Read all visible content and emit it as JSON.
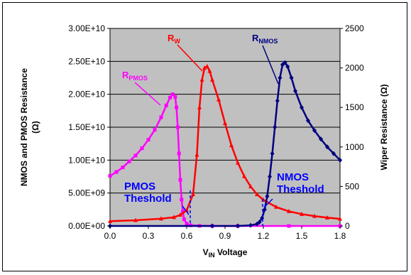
{
  "chart_data": {
    "type": "line",
    "xlabel_main": "V",
    "xlabel_sub": "IN",
    "xlabel_rest": " Voltage",
    "ylabel_left_line1": "NMOS and PMOS Resistance",
    "ylabel_left_line2": "(Ω)",
    "ylabel_right": "Wiper Resistance (Ω)",
    "xlim": [
      0.0,
      1.8
    ],
    "ylim_left": [
      0,
      30000000000
    ],
    "ylim_right": [
      0,
      2500
    ],
    "x_ticks": [
      "0.0",
      "0.3",
      "0.6",
      "0.9",
      "1.2",
      "1.5",
      "1.8"
    ],
    "y_left_ticks": [
      "0.00E+00",
      "5.00E+09",
      "1.00E+10",
      "1.50E+10",
      "2.00E+10",
      "2.50E+10",
      "3.00E+10"
    ],
    "y_right_ticks": [
      "0",
      "500",
      "1000",
      "1500",
      "2000",
      "2500"
    ],
    "grid": "horizontal",
    "background_color": "#c0c0c0",
    "series": [
      {
        "name": "R_PMOS",
        "axis": "left",
        "color": "#ff00ff",
        "marker": "square",
        "points": [
          [
            0.0,
            7600000000.0
          ],
          [
            0.05,
            8200000000.0
          ],
          [
            0.1,
            8900000000.0
          ],
          [
            0.15,
            9800000000.0
          ],
          [
            0.2,
            10700000000.0
          ],
          [
            0.25,
            11800000000.0
          ],
          [
            0.3,
            13100000000.0
          ],
          [
            0.35,
            14600000000.0
          ],
          [
            0.4,
            16500000000.0
          ],
          [
            0.44,
            18300000000.0
          ],
          [
            0.47,
            19500000000.0
          ],
          [
            0.49,
            20000000000.0
          ],
          [
            0.51,
            19600000000.0
          ],
          [
            0.52,
            18000000000.0
          ],
          [
            0.53,
            15000000000.0
          ],
          [
            0.54,
            11000000000.0
          ],
          [
            0.55,
            7000000000.0
          ],
          [
            0.56,
            4000000000.0
          ],
          [
            0.57,
            2200000000.0
          ],
          [
            0.58,
            1000000000.0
          ],
          [
            0.6,
            350000000.0
          ],
          [
            0.63,
            100000000.0
          ],
          [
            0.7,
            20000000.0
          ],
          [
            0.8,
            0
          ],
          [
            1.0,
            0
          ],
          [
            1.4,
            0
          ],
          [
            1.8,
            0
          ]
        ]
      },
      {
        "name": "R_W",
        "axis": "right",
        "color": "#ff0000",
        "marker": "triangle",
        "points": [
          [
            0.0,
            60
          ],
          [
            0.2,
            72
          ],
          [
            0.4,
            92
          ],
          [
            0.5,
            110
          ],
          [
            0.55,
            140
          ],
          [
            0.6,
            200
          ],
          [
            0.65,
            400
          ],
          [
            0.68,
            900
          ],
          [
            0.7,
            1500
          ],
          [
            0.72,
            1850
          ],
          [
            0.74,
            2000
          ],
          [
            0.76,
            2020
          ],
          [
            0.78,
            1960
          ],
          [
            0.8,
            1850
          ],
          [
            0.85,
            1600
          ],
          [
            0.9,
            1300
          ],
          [
            0.95,
            1020
          ],
          [
            1.0,
            800
          ],
          [
            1.05,
            630
          ],
          [
            1.1,
            500
          ],
          [
            1.15,
            400
          ],
          [
            1.2,
            330
          ],
          [
            1.3,
            240
          ],
          [
            1.4,
            185
          ],
          [
            1.5,
            150
          ],
          [
            1.6,
            125
          ],
          [
            1.7,
            105
          ],
          [
            1.8,
            90
          ]
        ]
      },
      {
        "name": "R_NMOS",
        "axis": "left",
        "color": "#000080",
        "marker": "diamond",
        "points": [
          [
            0.0,
            0
          ],
          [
            0.8,
            0
          ],
          [
            1.0,
            0
          ],
          [
            1.1,
            100000000.0
          ],
          [
            1.15,
            300000000.0
          ],
          [
            1.17,
            600000000.0
          ],
          [
            1.19,
            1200000000.0
          ],
          [
            1.21,
            2500000000.0
          ],
          [
            1.23,
            4500000000.0
          ],
          [
            1.25,
            7500000000.0
          ],
          [
            1.27,
            11000000000.0
          ],
          [
            1.29,
            15000000000.0
          ],
          [
            1.31,
            19000000000.0
          ],
          [
            1.33,
            22500000000.0
          ],
          [
            1.35,
            24500000000.0
          ],
          [
            1.37,
            24800000000.0
          ],
          [
            1.39,
            24200000000.0
          ],
          [
            1.42,
            22500000000.0
          ],
          [
            1.45,
            20500000000.0
          ],
          [
            1.5,
            18000000000.0
          ],
          [
            1.55,
            16000000000.0
          ],
          [
            1.6,
            14500000000.0
          ],
          [
            1.65,
            13200000000.0
          ],
          [
            1.7,
            12000000000.0
          ],
          [
            1.75,
            11000000000.0
          ],
          [
            1.8,
            10000000000.0
          ]
        ]
      }
    ],
    "labels": {
      "rw_main": "R",
      "rw_sub": "W",
      "rnmos_main": "R",
      "rnmos_sub": "NMOS",
      "rpmos_main": "R",
      "rpmos_sub": "PMOS",
      "pmos_th_line1": "PMOS",
      "pmos_th_line2": "Theshold",
      "nmos_th_line1": "NMOS",
      "nmos_th_line2": "Theshold"
    },
    "annotation_colors": {
      "rw": "#ff0000",
      "rnmos": "#000080",
      "rpmos": "#ff00ff",
      "threshold": "#0000ff"
    }
  }
}
